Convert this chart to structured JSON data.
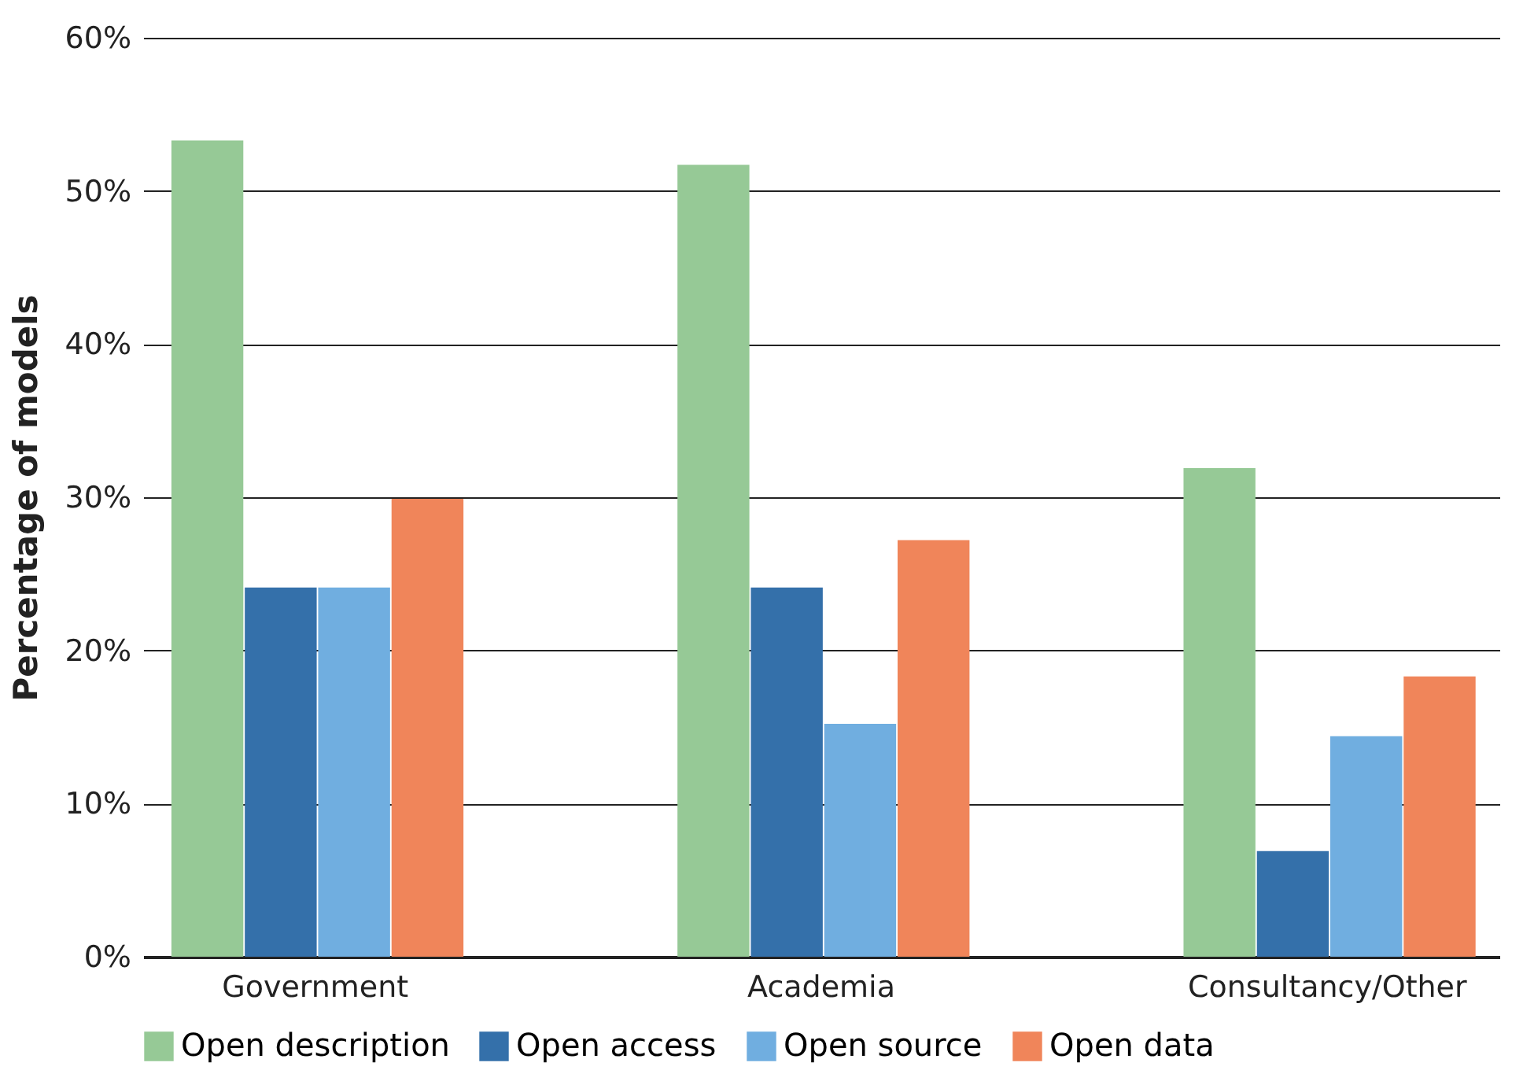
{
  "chart_data": {
    "type": "bar",
    "ylabel": "Percentage of models",
    "categories": [
      "Government",
      "Academia",
      "Consultancy/Other"
    ],
    "series": [
      {
        "name": "Open description",
        "color": "#96c996",
        "values": [
          53.3,
          51.7,
          31.9
        ]
      },
      {
        "name": "Open access",
        "color": "#3470aa",
        "values": [
          24.1,
          24.1,
          6.9
        ]
      },
      {
        "name": "Open source",
        "color": "#70aee0",
        "values": [
          24.1,
          15.2,
          14.4
        ]
      },
      {
        "name": "Open data",
        "color": "#f0855a",
        "values": [
          29.9,
          27.2,
          18.3
        ]
      }
    ],
    "ylim": [
      0,
      60
    ],
    "yticks": [
      {
        "value": 0,
        "label": "0%"
      },
      {
        "value": 10,
        "label": "10%"
      },
      {
        "value": 20,
        "label": "20%"
      },
      {
        "value": 30,
        "label": "30%"
      },
      {
        "value": 40,
        "label": "40%"
      },
      {
        "value": 50,
        "label": "50%"
      },
      {
        "value": 60,
        "label": "60%"
      }
    ],
    "grid": "y",
    "legend": "bottom"
  }
}
